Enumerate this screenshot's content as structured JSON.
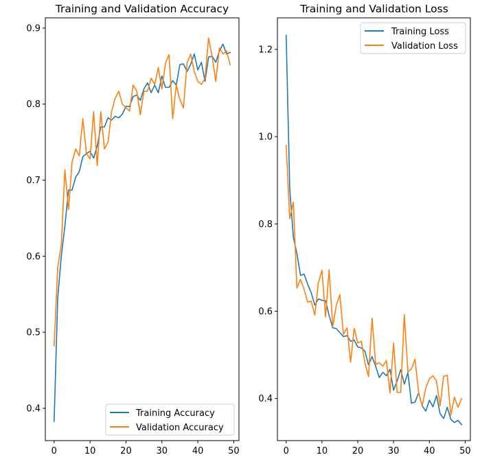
{
  "chart_data": [
    {
      "type": "line",
      "title": "Training and Validation Accuracy",
      "xlabel": "",
      "ylabel": "",
      "xlim": [
        -2.45,
        51.45
      ],
      "ylim": [
        0.3575,
        0.9135
      ],
      "xticks": [
        0,
        10,
        20,
        30,
        40,
        50
      ],
      "xtick_labels": [
        "0",
        "10",
        "20",
        "30",
        "40",
        "50"
      ],
      "yticks": [
        0.4,
        0.5,
        0.6,
        0.7,
        0.8,
        0.9
      ],
      "ytick_labels": [
        "0.4",
        "0.5",
        "0.6",
        "0.7",
        "0.8",
        "0.9"
      ],
      "grid": false,
      "legend_position": "lower-right",
      "x": [
        0,
        1,
        2,
        3,
        4,
        5,
        6,
        7,
        8,
        9,
        10,
        11,
        12,
        13,
        14,
        15,
        16,
        17,
        18,
        19,
        20,
        21,
        22,
        23,
        24,
        25,
        26,
        27,
        28,
        29,
        30,
        31,
        32,
        33,
        34,
        35,
        36,
        37,
        38,
        39,
        40,
        41,
        42,
        43,
        44,
        45,
        46,
        47,
        48,
        49
      ],
      "series": [
        {
          "name": "Training Accuracy",
          "color": "#1f77b4",
          "values": [
            0.383,
            0.545,
            0.6,
            0.64,
            0.687,
            0.687,
            0.704,
            0.711,
            0.731,
            0.735,
            0.738,
            0.729,
            0.745,
            0.77,
            0.77,
            0.782,
            0.779,
            0.784,
            0.782,
            0.787,
            0.797,
            0.797,
            0.81,
            0.812,
            0.805,
            0.82,
            0.828,
            0.815,
            0.825,
            0.815,
            0.837,
            0.822,
            0.822,
            0.831,
            0.825,
            0.852,
            0.853,
            0.843,
            0.852,
            0.866,
            0.845,
            0.855,
            0.83,
            0.862,
            0.863,
            0.855,
            0.87,
            0.879,
            0.866,
            0.868
          ]
        },
        {
          "name": "Validation Accuracy",
          "color": "#ff7f0e",
          "values": [
            0.482,
            0.585,
            0.615,
            0.714,
            0.661,
            0.724,
            0.741,
            0.732,
            0.781,
            0.735,
            0.728,
            0.79,
            0.719,
            0.79,
            0.741,
            0.75,
            0.79,
            0.808,
            0.817,
            0.8,
            0.795,
            0.791,
            0.825,
            0.817,
            0.786,
            0.817,
            0.817,
            0.834,
            0.826,
            0.848,
            0.82,
            0.854,
            0.865,
            0.781,
            0.825,
            0.806,
            0.795,
            0.854,
            0.866,
            0.843,
            0.83,
            0.826,
            0.834,
            0.887,
            0.862,
            0.83,
            0.874,
            0.866,
            0.87,
            0.852
          ]
        }
      ]
    },
    {
      "type": "line",
      "title": "Training and Validation Loss",
      "xlabel": "",
      "ylabel": "",
      "xlim": [
        -2.45,
        51.45
      ],
      "ylim": [
        0.3035,
        1.2722
      ],
      "xticks": [
        0,
        10,
        20,
        30,
        40,
        50
      ],
      "xtick_labels": [
        "0",
        "10",
        "20",
        "30",
        "40",
        "50"
      ],
      "yticks": [
        0.4,
        0.6,
        0.8,
        1.0,
        1.2
      ],
      "ytick_labels": [
        "0.4",
        "0.6",
        "0.8",
        "1.0",
        "1.2"
      ],
      "grid": false,
      "legend_position": "upper-right",
      "x": [
        0,
        1,
        2,
        3,
        4,
        5,
        6,
        7,
        8,
        9,
        10,
        11,
        12,
        13,
        14,
        15,
        16,
        17,
        18,
        19,
        20,
        21,
        22,
        23,
        24,
        25,
        26,
        27,
        28,
        29,
        30,
        31,
        32,
        33,
        34,
        35,
        36,
        37,
        38,
        39,
        40,
        41,
        42,
        43,
        44,
        45,
        46,
        47,
        48,
        49
      ],
      "series": [
        {
          "name": "Training Loss",
          "color": "#1f77b4",
          "values": [
            1.232,
            0.88,
            0.77,
            0.732,
            0.682,
            0.685,
            0.662,
            0.642,
            0.614,
            0.628,
            0.625,
            0.624,
            0.59,
            0.562,
            0.56,
            0.551,
            0.542,
            0.544,
            0.531,
            0.534,
            0.518,
            0.516,
            0.508,
            0.477,
            0.496,
            0.474,
            0.448,
            0.46,
            0.452,
            0.467,
            0.419,
            0.44,
            0.466,
            0.433,
            0.459,
            0.389,
            0.392,
            0.413,
            0.383,
            0.371,
            0.396,
            0.381,
            0.407,
            0.365,
            0.354,
            0.38,
            0.352,
            0.345,
            0.35,
            0.34
          ]
        },
        {
          "name": "Validation Loss",
          "color": "#ff7f0e",
          "values": [
            0.98,
            0.812,
            0.85,
            0.653,
            0.673,
            0.65,
            0.621,
            0.623,
            0.591,
            0.665,
            0.694,
            0.587,
            0.695,
            0.565,
            0.613,
            0.638,
            0.547,
            0.562,
            0.483,
            0.561,
            0.527,
            0.531,
            0.482,
            0.45,
            0.584,
            0.478,
            0.482,
            0.474,
            0.487,
            0.413,
            0.527,
            0.414,
            0.414,
            0.592,
            0.461,
            0.468,
            0.49,
            0.413,
            0.383,
            0.424,
            0.445,
            0.452,
            0.44,
            0.383,
            0.451,
            0.453,
            0.362,
            0.403,
            0.38,
            0.4
          ]
        }
      ]
    }
  ]
}
